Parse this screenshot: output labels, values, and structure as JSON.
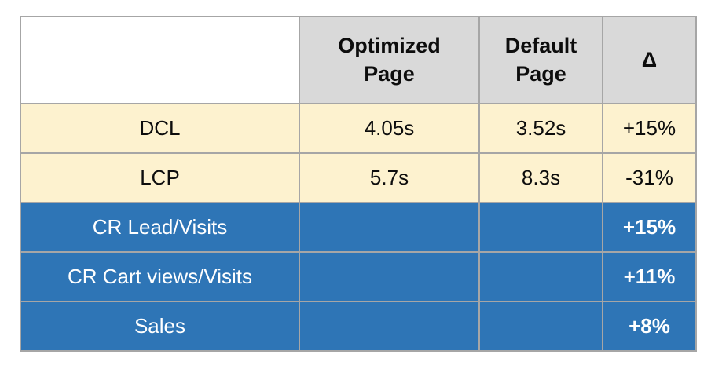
{
  "table": {
    "header": {
      "corner": "",
      "optimized": "Optimized\nPage",
      "default": "Default\nPage",
      "delta": "Δ"
    },
    "rows": [
      {
        "label": "DCL",
        "optimized": "4.05s",
        "default": "3.52s",
        "delta": "+15%",
        "style": "yellow"
      },
      {
        "label": "LCP",
        "optimized": "5.7s",
        "default": "8.3s",
        "delta": "-31%",
        "style": "yellow"
      },
      {
        "label": "CR Lead/Visits",
        "optimized": "",
        "default": "",
        "delta": "+15%",
        "style": "blue"
      },
      {
        "label": "CR Cart views/Visits",
        "optimized": "",
        "default": "",
        "delta": "+11%",
        "style": "blue"
      },
      {
        "label": "Sales",
        "optimized": "",
        "default": "",
        "delta": "+8%",
        "style": "blue"
      }
    ],
    "colors": {
      "header_bg": "#d9d9d9",
      "metric_row_bg": "#fdf2cf",
      "conversion_row_bg": "#2e75b6",
      "border": "#a6a6a6",
      "header_text": "#0d0d0d",
      "conversion_row_text": "#ffffff"
    }
  },
  "chart_data": {
    "type": "table",
    "columns": [
      "",
      "Optimized Page",
      "Default Page",
      "Δ"
    ],
    "rows": [
      [
        "DCL",
        "4.05s",
        "3.52s",
        "+15%"
      ],
      [
        "LCP",
        "5.7s",
        "8.3s",
        "-31%"
      ],
      [
        "CR Lead/Visits",
        "",
        "",
        "+15%"
      ],
      [
        "CR Cart views/Visits",
        "",
        "",
        "+11%"
      ],
      [
        "Sales",
        "",
        "",
        "+8%"
      ]
    ]
  }
}
